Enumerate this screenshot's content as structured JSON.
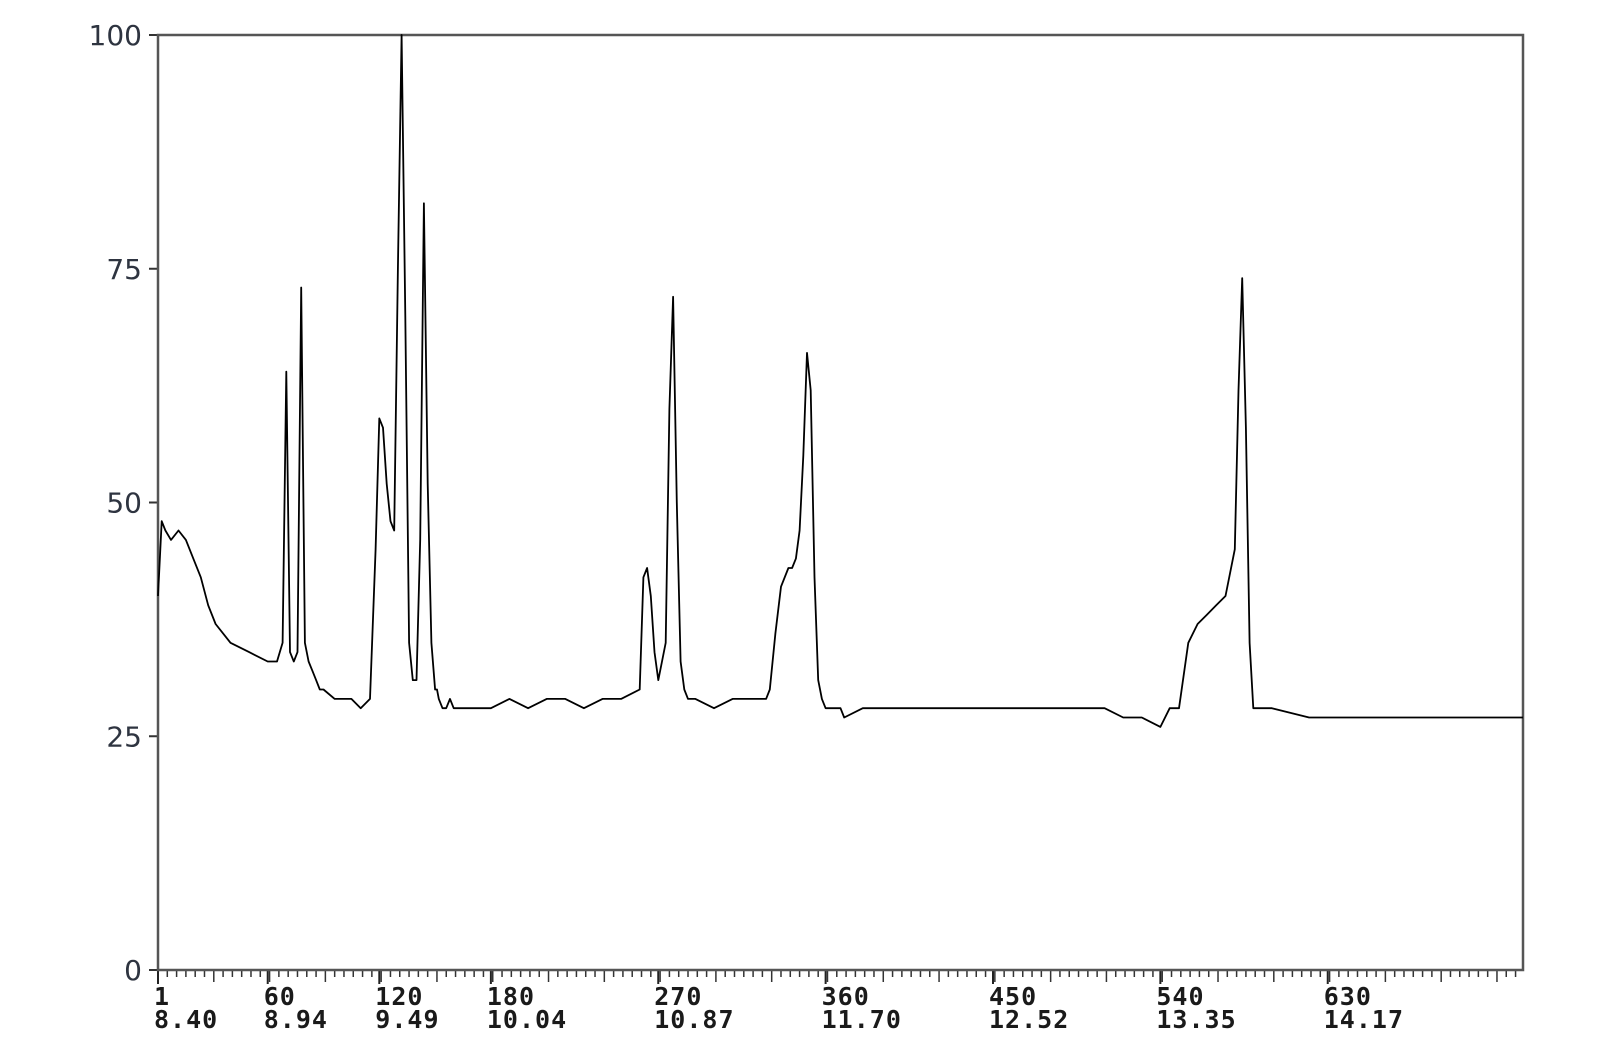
{
  "chart_data": {
    "type": "line",
    "title": "",
    "xlabel": "",
    "ylabel": "",
    "ylim": [
      0,
      100
    ],
    "yticks": [
      0,
      25,
      50,
      75,
      100
    ],
    "xlim": [
      1,
      735
    ],
    "xticks": [
      {
        "scan": 1,
        "scan_label": "1",
        "time_label": "8.40"
      },
      {
        "scan": 60,
        "scan_label": "60",
        "time_label": "8.94"
      },
      {
        "scan": 120,
        "scan_label": "120",
        "time_label": "9.49"
      },
      {
        "scan": 180,
        "scan_label": "180",
        "time_label": "10.04"
      },
      {
        "scan": 270,
        "scan_label": "270",
        "time_label": "10.87"
      },
      {
        "scan": 360,
        "scan_label": "360",
        "time_label": "11.70"
      },
      {
        "scan": 450,
        "scan_label": "450",
        "time_label": "12.52"
      },
      {
        "scan": 540,
        "scan_label": "540",
        "time_label": "13.35"
      },
      {
        "scan": 630,
        "scan_label": "630",
        "time_label": "14.17"
      }
    ],
    "grid": false,
    "legend": "none",
    "color": "#000000",
    "series": [
      {
        "x": [
          1,
          3,
          5,
          8,
          12,
          16,
          20,
          24,
          28,
          32,
          40,
          50,
          60,
          65,
          68,
          70,
          72,
          74,
          76,
          78,
          80,
          82,
          84,
          86,
          88,
          90,
          96,
          100,
          105,
          110,
          115,
          118,
          120,
          122,
          124,
          126,
          128,
          130,
          132,
          134,
          136,
          138,
          140,
          142,
          144,
          146,
          148,
          150,
          151,
          152,
          154,
          156,
          158,
          160,
          170,
          180,
          190,
          200,
          210,
          220,
          230,
          240,
          250,
          260,
          262,
          264,
          266,
          268,
          270,
          272,
          274,
          276,
          278,
          280,
          282,
          284,
          286,
          288,
          290,
          300,
          310,
          320,
          325,
          328,
          330,
          333,
          336,
          340,
          342,
          344,
          346,
          348,
          350,
          352,
          354,
          356,
          358,
          360,
          362,
          364,
          366,
          368,
          370,
          380,
          400,
          420,
          440,
          460,
          480,
          500,
          510,
          520,
          530,
          540,
          545,
          550,
          555,
          560,
          565,
          570,
          575,
          580,
          582,
          584,
          586,
          588,
          590,
          592,
          594,
          596,
          600,
          620,
          640,
          660,
          680,
          700,
          720,
          730,
          735
        ],
        "y": [
          40,
          48,
          47,
          46,
          47,
          46,
          44,
          42,
          39,
          37,
          35,
          34,
          33,
          33,
          35,
          64,
          34,
          33,
          34,
          73,
          35,
          33,
          32,
          31,
          30,
          30,
          29,
          29,
          29,
          28,
          29,
          45,
          59,
          58,
          52,
          48,
          47,
          75,
          100,
          70,
          35,
          31,
          31,
          46,
          82,
          52,
          35,
          30,
          30,
          29,
          28,
          28,
          29,
          28,
          28,
          28,
          29,
          28,
          29,
          29,
          28,
          29,
          29,
          30,
          42,
          43,
          40,
          34,
          31,
          33,
          35,
          60,
          72,
          50,
          33,
          30,
          29,
          29,
          29,
          28,
          29,
          29,
          29,
          29,
          30,
          36,
          41,
          43,
          43,
          44,
          47,
          55,
          66,
          62,
          42,
          31,
          29,
          28,
          28,
          28,
          28,
          28,
          27,
          28,
          28,
          28,
          28,
          28,
          28,
          28,
          28,
          27,
          27,
          26,
          28,
          28,
          35,
          37,
          38,
          39,
          40,
          45,
          62,
          74,
          58,
          35,
          28,
          28,
          28,
          28,
          28,
          27,
          27,
          27,
          27,
          27,
          27,
          27,
          27
        ]
      }
    ]
  }
}
